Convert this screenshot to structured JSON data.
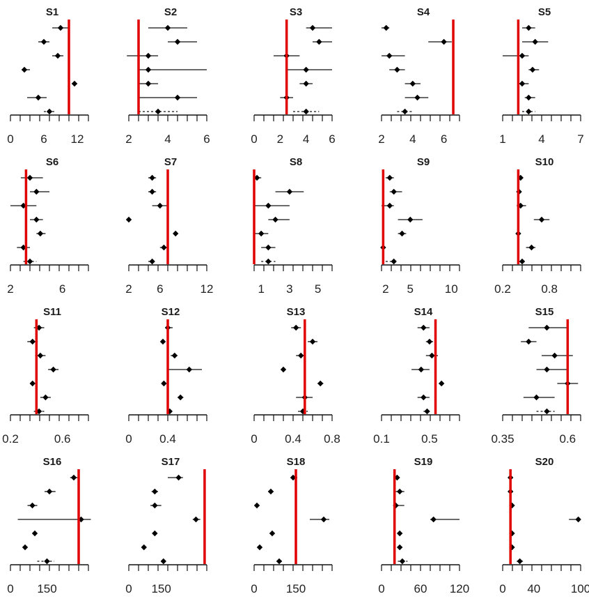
{
  "chart_data": [
    {
      "type": "scatter",
      "title": "S1",
      "xticks": [
        0,
        6,
        12
      ],
      "xlim": [
        0,
        14
      ],
      "ref": 10.5,
      "points": [
        {
          "x": 9,
          "lo": 7.5,
          "hi": 10.5
        },
        {
          "x": 6,
          "lo": 5,
          "hi": 7
        },
        {
          "x": 8.5,
          "lo": 7.5,
          "hi": 9.5
        },
        {
          "x": 2.5,
          "lo": 2,
          "hi": 3.5
        },
        {
          "x": 11.5,
          "lo": 11,
          "hi": 12
        },
        {
          "x": 5,
          "lo": 3,
          "hi": 6.5
        },
        {
          "x": 7,
          "lo": 6,
          "hi": 8,
          "dashed": true
        }
      ]
    },
    {
      "type": "scatter",
      "title": "S2",
      "xticks": [
        2,
        4,
        6
      ],
      "xlim": [
        2,
        6
      ],
      "ref": 2.5,
      "points": [
        {
          "x": 4,
          "lo": 3,
          "hi": 5
        },
        {
          "x": 4.5,
          "lo": 4,
          "hi": 5.5
        },
        {
          "x": 3,
          "lo": 1.9,
          "hi": 3.5
        },
        {
          "x": 3,
          "lo": 2.5,
          "hi": 6
        },
        {
          "x": 3,
          "lo": 2.5,
          "hi": 3.5
        },
        {
          "x": 4.5,
          "lo": 2.5,
          "hi": 5.5
        },
        {
          "x": 3.5,
          "lo": 2.5,
          "hi": 4.5,
          "dashed": true
        }
      ]
    },
    {
      "type": "scatter",
      "title": "S3",
      "xticks": [
        0,
        2,
        4,
        6
      ],
      "xlim": [
        0,
        6
      ],
      "ref": 2.5,
      "points": [
        {
          "x": 4.5,
          "lo": 4,
          "hi": 6
        },
        {
          "x": 5,
          "lo": 4.5,
          "hi": 6
        },
        {
          "x": 2.5,
          "lo": 1.5,
          "hi": 3.5
        },
        {
          "x": 4,
          "lo": 2.5,
          "hi": 6
        },
        {
          "x": 4,
          "lo": 3.5,
          "hi": 4.5
        },
        {
          "x": 2.5,
          "lo": 2,
          "hi": 3
        },
        {
          "x": 4,
          "lo": 3,
          "hi": 5,
          "dashed": true
        }
      ]
    },
    {
      "type": "scatter",
      "title": "S4",
      "xticks": [
        2,
        4,
        6
      ],
      "xlim": [
        2,
        7
      ],
      "ref": 6.6,
      "points": [
        {
          "x": 2.3,
          "lo": 2,
          "hi": 2.5
        },
        {
          "x": 6,
          "lo": 5,
          "hi": 6.5
        },
        {
          "x": 2.5,
          "lo": 2,
          "hi": 3.5
        },
        {
          "x": 3,
          "lo": 2.5,
          "hi": 3.5
        },
        {
          "x": 4,
          "lo": 3.5,
          "hi": 4.5
        },
        {
          "x": 4.3,
          "lo": 3.5,
          "hi": 5
        },
        {
          "x": 3.5,
          "lo": 3,
          "hi": 4,
          "dashed": true
        }
      ]
    },
    {
      "type": "scatter",
      "title": "S5",
      "xticks": [
        1,
        4,
        7
      ],
      "xlim": [
        1,
        7
      ],
      "ref": 2.2,
      "points": [
        {
          "x": 3,
          "lo": 2.5,
          "hi": 3.5
        },
        {
          "x": 3.5,
          "lo": 2.5,
          "hi": 4.5
        },
        {
          "x": 2.5,
          "lo": 1,
          "hi": 3
        },
        {
          "x": 3.3,
          "lo": 3,
          "hi": 3.8
        },
        {
          "x": 2.5,
          "lo": 2.2,
          "hi": 3
        },
        {
          "x": 3,
          "lo": 2.7,
          "hi": 3.5
        },
        {
          "x": 3,
          "lo": 2.5,
          "hi": 3.5,
          "dashed": true
        }
      ]
    },
    {
      "type": "scatter",
      "title": "S6",
      "xticks": [
        2,
        6
      ],
      "xlim": [
        2,
        8
      ],
      "ref": 3.2,
      "points": [
        {
          "x": 3.5,
          "lo": 2.8,
          "hi": 4.5
        },
        {
          "x": 4,
          "lo": 3.5,
          "hi": 5
        },
        {
          "x": 3,
          "lo": 2,
          "hi": 4
        },
        {
          "x": 4,
          "lo": 3.5,
          "hi": 4.5
        },
        {
          "x": 4.3,
          "lo": 4,
          "hi": 4.7
        },
        {
          "x": 3,
          "lo": 2.5,
          "hi": 3.5
        },
        {
          "x": 3.5,
          "lo": 3,
          "hi": 4,
          "dashed": true
        }
      ]
    },
    {
      "type": "scatter",
      "title": "S7",
      "xticks": [
        2,
        6,
        12
      ],
      "xlim": [
        2,
        12
      ],
      "ref": 7,
      "points": [
        {
          "x": 5,
          "lo": 4.5,
          "hi": 5.5
        },
        {
          "x": 5,
          "lo": 4.5,
          "hi": 5.5
        },
        {
          "x": 6,
          "lo": 5,
          "hi": 7
        },
        {
          "x": 2,
          "lo": 1.8,
          "hi": 2.2
        },
        {
          "x": 8,
          "lo": 7.8,
          "hi": 8.2
        },
        {
          "x": 6.5,
          "lo": 6,
          "hi": 7
        },
        {
          "x": 5,
          "lo": 4.5,
          "hi": 5.5,
          "dashed": true
        }
      ]
    },
    {
      "type": "scatter",
      "title": "S8",
      "xticks": [
        1,
        3,
        5
      ],
      "xlim": [
        0.5,
        6
      ],
      "ref": 0.5,
      "points": [
        {
          "x": 0.7,
          "lo": 0.5,
          "hi": 1
        },
        {
          "x": 3,
          "lo": 2,
          "hi": 4
        },
        {
          "x": 1.5,
          "lo": 0.5,
          "hi": 3
        },
        {
          "x": 2,
          "lo": 1.5,
          "hi": 3
        },
        {
          "x": 1,
          "lo": 0.5,
          "hi": 1.5
        },
        {
          "x": 1.5,
          "lo": 1,
          "hi": 2
        },
        {
          "x": 1.5,
          "lo": 1,
          "hi": 2,
          "dashed": true
        }
      ]
    },
    {
      "type": "scatter",
      "title": "S9",
      "xticks": [
        2,
        5,
        10
      ],
      "xlim": [
        1.5,
        11
      ],
      "ref": 1.7,
      "points": [
        {
          "x": 2.5,
          "lo": 2,
          "hi": 3
        },
        {
          "x": 3,
          "lo": 2.5,
          "hi": 4
        },
        {
          "x": 2.5,
          "lo": 1.5,
          "hi": 3
        },
        {
          "x": 5,
          "lo": 3.5,
          "hi": 6.5
        },
        {
          "x": 4,
          "lo": 3.5,
          "hi": 4.5
        },
        {
          "x": 1.7,
          "lo": 1.5,
          "hi": 2
        },
        {
          "x": 3,
          "lo": 2,
          "hi": 3.5,
          "dashed": true
        }
      ]
    },
    {
      "type": "scatter",
      "title": "S10",
      "xticks": [
        0.2,
        0.8
      ],
      "xlim": [
        0.2,
        1.2
      ],
      "ref": 0.4,
      "points": [
        {
          "x": 0.43,
          "lo": 0.4,
          "hi": 0.46
        },
        {
          "x": 0.41,
          "lo": 0.38,
          "hi": 0.44
        },
        {
          "x": 0.43,
          "lo": 0.38,
          "hi": 0.5
        },
        {
          "x": 0.7,
          "lo": 0.6,
          "hi": 0.8
        },
        {
          "x": 0.4,
          "lo": 0.38,
          "hi": 0.42
        },
        {
          "x": 0.57,
          "lo": 0.5,
          "hi": 0.62
        },
        {
          "x": 0.45,
          "lo": 0.4,
          "hi": 0.5,
          "dashed": true
        }
      ]
    },
    {
      "type": "scatter",
      "title": "S11",
      "xticks": [
        0.2,
        0.6
      ],
      "xlim": [
        0.2,
        0.8
      ],
      "ref": 0.4,
      "points": [
        {
          "x": 0.42,
          "lo": 0.38,
          "hi": 0.46
        },
        {
          "x": 0.37,
          "lo": 0.33,
          "hi": 0.41
        },
        {
          "x": 0.43,
          "lo": 0.39,
          "hi": 0.47
        },
        {
          "x": 0.53,
          "lo": 0.49,
          "hi": 0.57
        },
        {
          "x": 0.37,
          "lo": 0.35,
          "hi": 0.39
        },
        {
          "x": 0.47,
          "lo": 0.43,
          "hi": 0.51
        },
        {
          "x": 0.42,
          "lo": 0.38,
          "hi": 0.46,
          "dashed": true
        }
      ]
    },
    {
      "type": "scatter",
      "title": "S12",
      "xticks": [
        0.0,
        0.4
      ],
      "xlim": [
        0,
        0.8
      ],
      "ref": 0.4,
      "points": [
        {
          "x": 0.4,
          "lo": 0.38,
          "hi": 0.45
        },
        {
          "x": 0.35,
          "lo": 0.33,
          "hi": 0.37
        },
        {
          "x": 0.47,
          "lo": 0.43,
          "hi": 0.5
        },
        {
          "x": 0.62,
          "lo": 0.4,
          "hi": 0.75
        },
        {
          "x": 0.36,
          "lo": 0.34,
          "hi": 0.38
        },
        {
          "x": 0.53,
          "lo": 0.5,
          "hi": 0.56
        },
        {
          "x": 0.42,
          "lo": 0.4,
          "hi": 0.44,
          "dashed": true
        }
      ]
    },
    {
      "type": "scatter",
      "title": "S13",
      "xticks": [
        0.0,
        0.4,
        0.8
      ],
      "xlim": [
        0,
        0.8
      ],
      "ref": 0.52,
      "points": [
        {
          "x": 0.43,
          "lo": 0.38,
          "hi": 0.48
        },
        {
          "x": 0.6,
          "lo": 0.55,
          "hi": 0.65
        },
        {
          "x": 0.48,
          "lo": 0.43,
          "hi": 0.53
        },
        {
          "x": 0.3,
          "lo": 0.28,
          "hi": 0.32
        },
        {
          "x": 0.68,
          "lo": 0.65,
          "hi": 0.71
        },
        {
          "x": 0.52,
          "lo": 0.43,
          "hi": 0.6
        },
        {
          "x": 0.5,
          "lo": 0.45,
          "hi": 0.55,
          "dashed": true
        }
      ]
    },
    {
      "type": "scatter",
      "title": "S14",
      "xticks": [
        0.1,
        0.5
      ],
      "xlim": [
        0.1,
        0.75
      ],
      "ref": 0.55,
      "points": [
        {
          "x": 0.45,
          "lo": 0.4,
          "hi": 0.5
        },
        {
          "x": 0.5,
          "lo": 0.47,
          "hi": 0.53
        },
        {
          "x": 0.52,
          "lo": 0.47,
          "hi": 0.57
        },
        {
          "x": 0.43,
          "lo": 0.35,
          "hi": 0.5
        },
        {
          "x": 0.6,
          "lo": 0.58,
          "hi": 0.62
        },
        {
          "x": 0.45,
          "lo": 0.4,
          "hi": 0.5
        },
        {
          "x": 0.48,
          "lo": 0.45,
          "hi": 0.52,
          "dashed": true
        }
      ]
    },
    {
      "type": "scatter",
      "title": "S15",
      "xticks": [
        0.35,
        0.6
      ],
      "xlim": [
        0.35,
        0.65
      ],
      "ref": 0.6,
      "points": [
        {
          "x": 0.52,
          "lo": 0.45,
          "hi": 0.6
        },
        {
          "x": 0.45,
          "lo": 0.42,
          "hi": 0.48
        },
        {
          "x": 0.55,
          "lo": 0.5,
          "hi": 0.62
        },
        {
          "x": 0.52,
          "lo": 0.48,
          "hi": 0.6
        },
        {
          "x": 0.6,
          "lo": 0.56,
          "hi": 0.64
        },
        {
          "x": 0.48,
          "lo": 0.43,
          "hi": 0.55
        },
        {
          "x": 0.52,
          "lo": 0.48,
          "hi": 0.55,
          "dashed": true
        }
      ]
    },
    {
      "type": "scatter",
      "title": "S16",
      "xticks": [
        0,
        150
      ],
      "xlim": [
        0,
        320
      ],
      "ref": 280,
      "points": [
        {
          "x": 260,
          "lo": 245,
          "hi": 275
        },
        {
          "x": 160,
          "lo": 140,
          "hi": 185
        },
        {
          "x": 90,
          "lo": 70,
          "hi": 110
        },
        {
          "x": 290,
          "lo": 30,
          "hi": 330
        },
        {
          "x": 100,
          "lo": 95,
          "hi": 105
        },
        {
          "x": 60,
          "lo": 55,
          "hi": 65
        },
        {
          "x": 150,
          "lo": 110,
          "hi": 180,
          "dashed": true
        }
      ]
    },
    {
      "type": "scatter",
      "title": "S17",
      "xticks": [
        0,
        150
      ],
      "xlim": [
        0,
        360
      ],
      "ref": 350,
      "points": [
        {
          "x": 230,
          "lo": 180,
          "hi": 250
        },
        {
          "x": 120,
          "lo": 105,
          "hi": 135
        },
        {
          "x": 120,
          "lo": 100,
          "hi": 150
        },
        {
          "x": 310,
          "lo": 295,
          "hi": 330
        },
        {
          "x": 120,
          "lo": 110,
          "hi": 130
        },
        {
          "x": 70,
          "lo": 65,
          "hi": 80
        },
        {
          "x": 160,
          "lo": 150,
          "hi": 170,
          "dashed": true
        }
      ]
    },
    {
      "type": "scatter",
      "title": "S18",
      "xticks": [
        0,
        150
      ],
      "xlim": [
        0,
        280
      ],
      "ref": 150,
      "points": [
        {
          "x": 140,
          "lo": 135,
          "hi": 155
        },
        {
          "x": 60,
          "lo": 50,
          "hi": 70
        },
        {
          "x": 10,
          "lo": 5,
          "hi": 15
        },
        {
          "x": 250,
          "lo": 200,
          "hi": 270
        },
        {
          "x": 65,
          "lo": 60,
          "hi": 70
        },
        {
          "x": 20,
          "lo": 15,
          "hi": 25
        },
        {
          "x": 90,
          "lo": 80,
          "hi": 100,
          "dashed": true
        }
      ]
    },
    {
      "type": "scatter",
      "title": "S19",
      "xticks": [
        0,
        60,
        120
      ],
      "xlim": [
        0,
        120
      ],
      "ref": 20,
      "points": [
        {
          "x": 24,
          "lo": 20,
          "hi": 28
        },
        {
          "x": 28,
          "lo": 22,
          "hi": 35
        },
        {
          "x": 22,
          "lo": 18,
          "hi": 35
        },
        {
          "x": 80,
          "lo": 75,
          "hi": 120
        },
        {
          "x": 28,
          "lo": 25,
          "hi": 32
        },
        {
          "x": 28,
          "lo": 25,
          "hi": 32
        },
        {
          "x": 32,
          "lo": 25,
          "hi": 40,
          "dashed": true
        }
      ]
    },
    {
      "type": "scatter",
      "title": "S20",
      "xticks": [
        0,
        40,
        100
      ],
      "xlim": [
        0,
        100
      ],
      "ref": 10,
      "points": [
        {
          "x": 10,
          "lo": 9,
          "hi": 11
        },
        {
          "x": 10,
          "lo": 9,
          "hi": 11
        },
        {
          "x": 12,
          "lo": 11,
          "hi": 13
        },
        {
          "x": 97,
          "lo": 85,
          "hi": 100
        },
        {
          "x": 12,
          "lo": 11,
          "hi": 13
        },
        {
          "x": 12,
          "lo": 11,
          "hi": 13
        },
        {
          "x": 22,
          "lo": 18,
          "hi": 26,
          "dashed": true
        }
      ]
    }
  ]
}
